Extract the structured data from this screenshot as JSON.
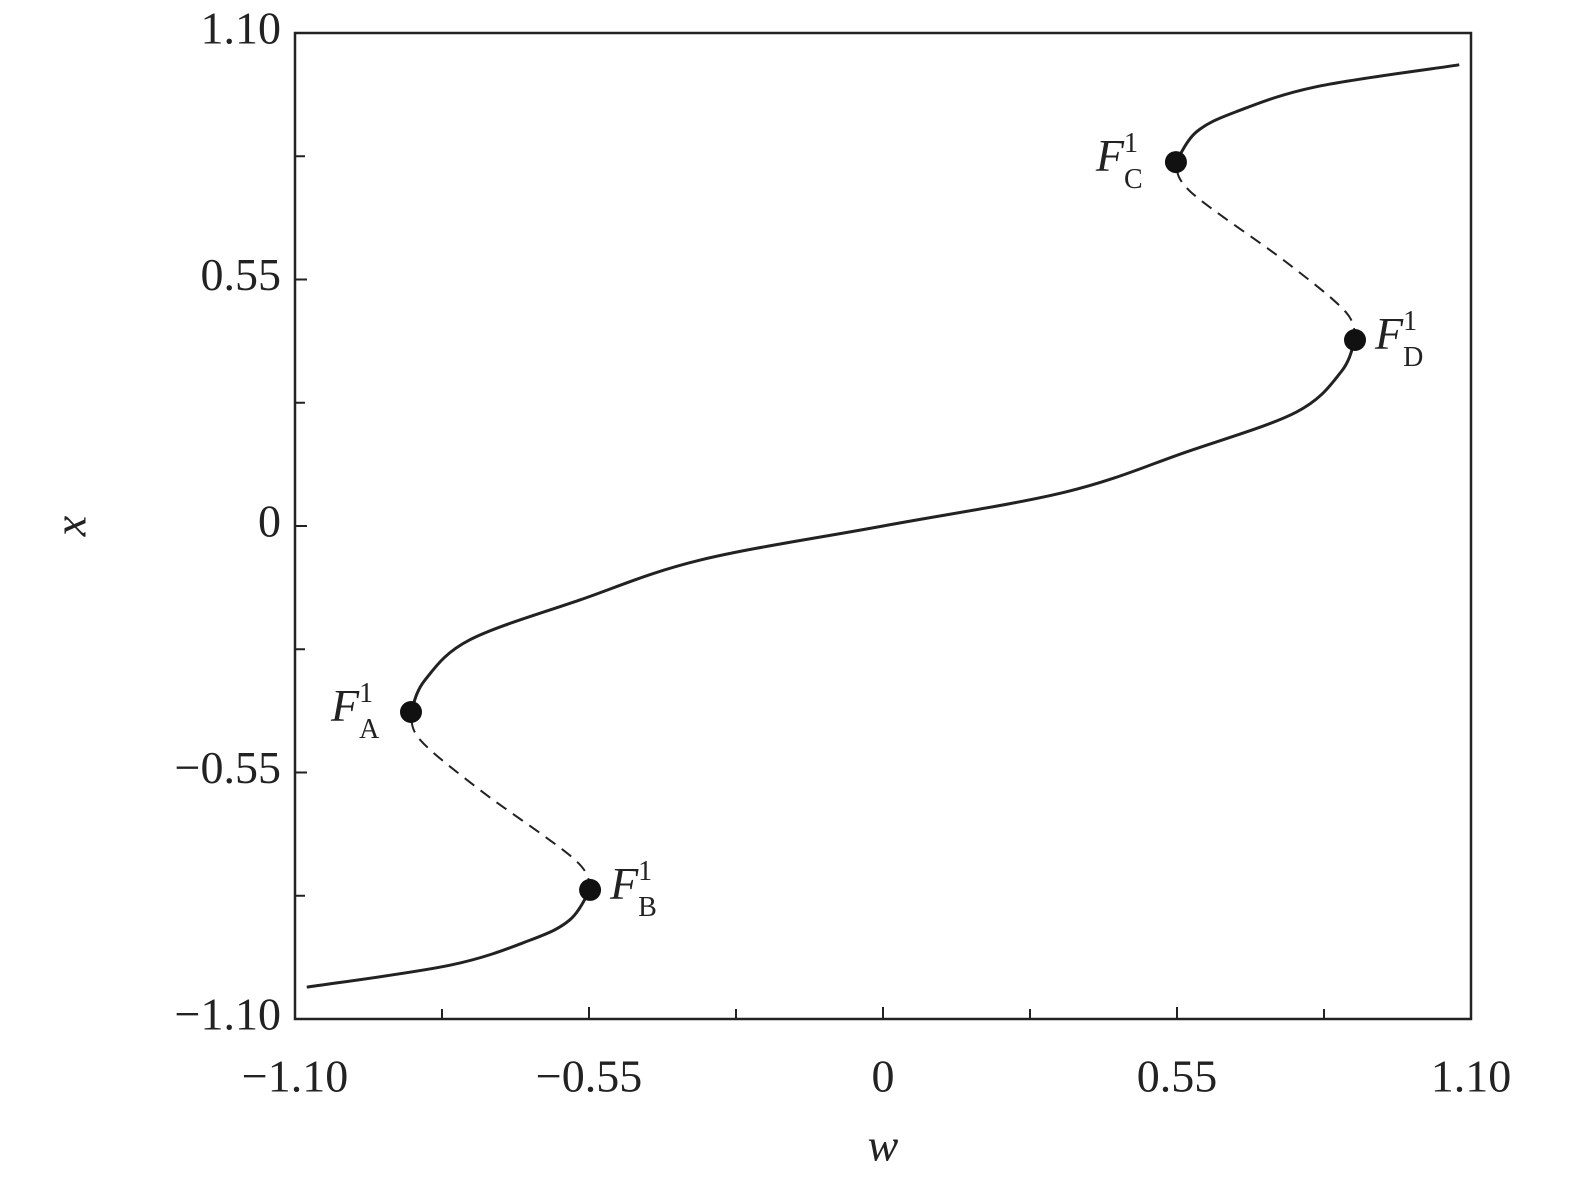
{
  "chart_data": {
    "type": "line",
    "x_label": "w",
    "y_label": "x",
    "xlim": [
      -1.1,
      1.1
    ],
    "ylim": [
      -1.1,
      1.1
    ],
    "xticks": [
      {
        "value": -1.1,
        "label": "−1.10"
      },
      {
        "value": -0.55,
        "label": "−0.55"
      },
      0,
      0.55,
      {
        "value": 1.1,
        "label": "1.10"
      }
    ],
    "yticks": [
      {
        "value": -1.1,
        "label": "−1.10"
      },
      {
        "value": -0.55,
        "label": "−0.55"
      },
      0,
      0.55,
      {
        "value": 1.1,
        "label": "1.10"
      }
    ],
    "xminor": [
      -0.825,
      -0.275,
      0.275,
      0.825
    ],
    "yminor": [
      -0.825,
      -0.275,
      0.275,
      0.825
    ],
    "grid": false,
    "series": [
      {
        "color": "#222222",
        "dash": false,
        "x": [
          -1.078,
          -0.81,
          -0.66,
          -0.586,
          -0.548,
          null,
          -0.883,
          -0.857,
          -0.773,
          -0.567,
          -0.342,
          0,
          0.342,
          0.567,
          0.773,
          0.857,
          0.883,
          null,
          0.548,
          0.586,
          0.66,
          0.81,
          1.078
        ],
        "values": [
          -1.029,
          -0.98,
          -0.924,
          -0.879,
          -0.812,
          null,
          -0.415,
          -0.344,
          -0.254,
          -0.165,
          -0.076,
          0,
          0.076,
          0.165,
          0.254,
          0.344,
          0.415,
          null,
          0.812,
          0.879,
          0.924,
          0.98,
          1.029
        ]
      },
      {
        "color": "#222222",
        "dash": true,
        "x": [
          -0.548,
          -0.576,
          -0.754,
          -0.866,
          -0.883,
          null,
          0.883,
          0.866,
          0.754,
          0.576,
          0.548
        ],
        "values": [
          -0.812,
          -0.745,
          -0.589,
          -0.477,
          -0.415,
          null,
          0.415,
          0.477,
          0.589,
          0.745,
          0.812
        ]
      }
    ],
    "points": [
      {
        "label": "F",
        "sup": "1",
        "sub": "A",
        "x": -0.883,
        "y": -0.415
      },
      {
        "label": "F",
        "sup": "1",
        "sub": "B",
        "x": -0.548,
        "y": -0.812
      },
      {
        "label": "F",
        "sup": "1",
        "sub": "C",
        "x": 0.548,
        "y": 0.812
      },
      {
        "label": "F",
        "sup": "1",
        "sub": "D",
        "x": 0.883,
        "y": 0.415
      }
    ]
  }
}
